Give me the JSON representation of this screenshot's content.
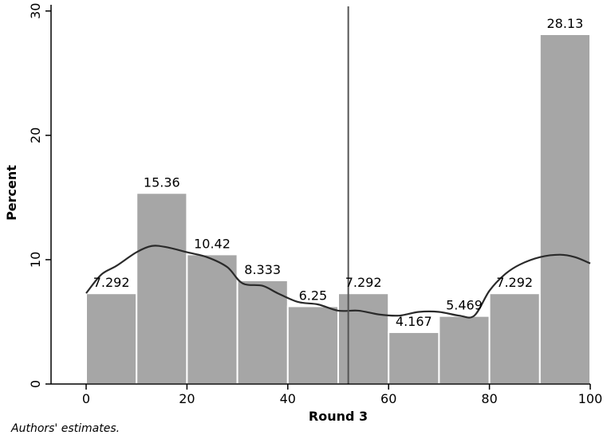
{
  "chart_data": {
    "type": "bar",
    "title": "",
    "xlabel": "Round 3",
    "ylabel": "Percent",
    "bins": [
      {
        "start": 0,
        "end": 10,
        "value": 7.292,
        "label": "7.292"
      },
      {
        "start": 10,
        "end": 20,
        "value": 15.36,
        "label": "15.36"
      },
      {
        "start": 20,
        "end": 30,
        "value": 10.42,
        "label": "10.42"
      },
      {
        "start": 30,
        "end": 40,
        "value": 8.333,
        "label": "8.333"
      },
      {
        "start": 40,
        "end": 50,
        "value": 6.25,
        "label": "6.25"
      },
      {
        "start": 50,
        "end": 60,
        "value": 7.292,
        "label": "7.292"
      },
      {
        "start": 60,
        "end": 70,
        "value": 4.167,
        "label": "4.167"
      },
      {
        "start": 70,
        "end": 80,
        "value": 5.469,
        "label": "5.469"
      },
      {
        "start": 80,
        "end": 90,
        "value": 7.292,
        "label": "7.292"
      },
      {
        "start": 90,
        "end": 100,
        "value": 28.13,
        "label": "28.13"
      }
    ],
    "xlim": [
      -7,
      100
    ],
    "ylim": [
      0,
      30.5
    ],
    "x_ticks": [
      0,
      20,
      40,
      60,
      80,
      100
    ],
    "y_ticks": [
      0,
      10,
      20,
      30
    ],
    "vertical_line_x": 52,
    "density_curve": {
      "x": [
        0,
        3,
        6,
        10,
        13,
        16,
        20,
        24,
        28,
        31,
        35,
        38,
        42,
        46,
        50,
        54,
        58,
        62,
        66,
        70,
        74,
        77,
        80,
        83,
        86,
        90,
        94,
        97,
        100
      ],
      "y": [
        7.3,
        8.8,
        9.5,
        10.6,
        11.1,
        11.0,
        10.6,
        10.2,
        9.4,
        8.1,
        7.9,
        7.3,
        6.6,
        6.4,
        5.9,
        5.9,
        5.6,
        5.5,
        5.8,
        5.8,
        5.5,
        5.5,
        7.5,
        8.8,
        9.6,
        10.2,
        10.4,
        10.2,
        9.7
      ]
    },
    "bar_color": "#a6a6a6",
    "bar_edge_color": "#ffffff",
    "curve_color": "#2a2a2a",
    "legend": "none",
    "grid": false
  },
  "source_note": "Authors' estimates."
}
